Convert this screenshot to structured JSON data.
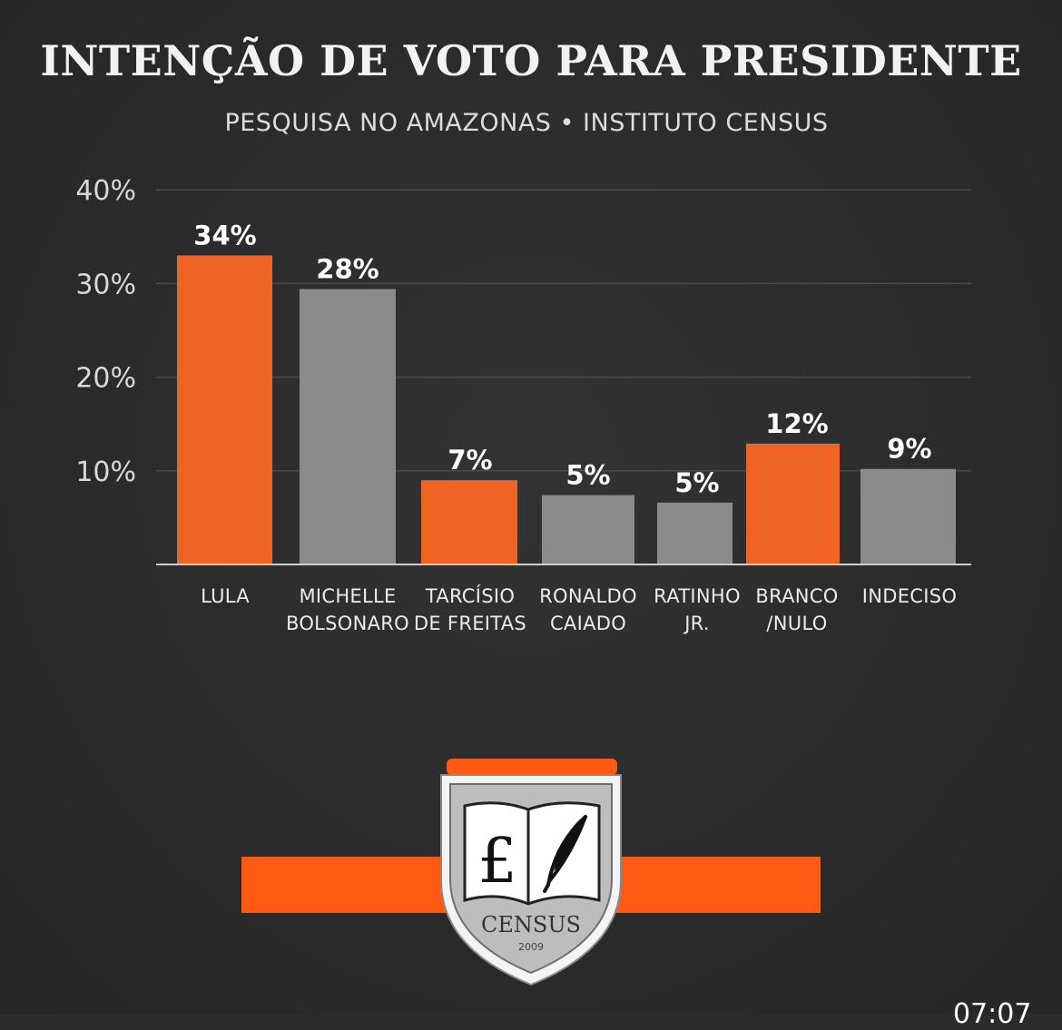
{
  "title": "INTENÇÃO DE VOTO PARA PRESIDENTE",
  "subtitle": "PESQUISA NO AMAZONAS • INSTITUTO CENSUS",
  "chart_data": {
    "type": "bar",
    "title": "INTENÇÃO DE VOTO PARA PRESIDENTE",
    "subtitle": "PESQUISA NO AMAZONAS • INSTITUTO CENSUS",
    "xlabel": "",
    "ylabel": "",
    "ylim": [
      0,
      40
    ],
    "yticks": [
      "10%",
      "20%",
      "30%",
      "40%"
    ],
    "ytick_values": [
      10,
      20,
      30,
      40
    ],
    "grid": true,
    "categories": [
      [
        "LULA"
      ],
      [
        "MICHELLE",
        "BOLSONARO"
      ],
      [
        "TARCÍSIO",
        "DE FREITAS"
      ],
      [
        "RONALDO",
        "CAIADO"
      ],
      [
        "RATINHO",
        "JR."
      ],
      [
        "BRANCO",
        "/NULO"
      ],
      [
        "INDECISO"
      ]
    ],
    "values": [
      34,
      28,
      7,
      5,
      5,
      12,
      9
    ],
    "bar_heights_shown": [
      33,
      29.4,
      9,
      7.4,
      6.6,
      12.9,
      10.2
    ],
    "data_labels": [
      "34%",
      "28%",
      "7%",
      "5%",
      "5%",
      "12%",
      "9%"
    ],
    "bar_colors": [
      "#ef6423",
      "#8b8b8b",
      "#ef6423",
      "#8b8b8b",
      "#8b8b8b",
      "#ef6423",
      "#8b8b8b"
    ]
  },
  "logo": {
    "name": "CENSUS",
    "year": "2009",
    "accent": "#ff5a14"
  },
  "timestamp": "07:07"
}
